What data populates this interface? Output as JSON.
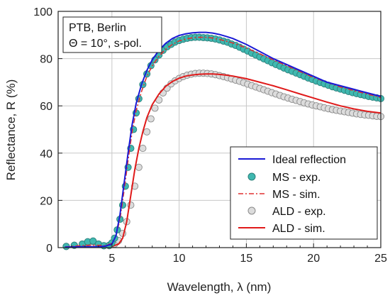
{
  "chart_data": {
    "type": "line",
    "xlabel": "Wavelength, λ (nm)",
    "ylabel": "Reflectance, R (%)",
    "xlim": [
      1,
      25
    ],
    "ylim": [
      0,
      100
    ],
    "xticks": [
      5,
      10,
      15,
      20,
      25
    ],
    "yticks": [
      0,
      20,
      40,
      60,
      80,
      100
    ],
    "grid": true,
    "legend_position": "bottom-right",
    "annotations": [
      "PTB, Berlin",
      "Θ = 10°, s-pol."
    ],
    "colors": {
      "ideal": "#1a1ad6",
      "ms_exp_fill": "#3fb8b0",
      "ms_exp_edge": "#2c7f7a",
      "ms_sim": "#e03030",
      "ald_exp_fill": "#dcdcdc",
      "ald_exp_edge": "#8a8a8a",
      "ald_sim": "#e01a1a",
      "grid": "#c8c8c8"
    },
    "series": [
      {
        "name": "Ideal reflection",
        "style": "line",
        "x": [
          1.5,
          2,
          3,
          4,
          4.5,
          5,
          5.3,
          5.6,
          5.9,
          6.2,
          6.5,
          6.8,
          7.2,
          7.6,
          8,
          8.5,
          9,
          9.5,
          10,
          10.5,
          11,
          11.5,
          12,
          12.5,
          13,
          13.5,
          14,
          15,
          16,
          17,
          18,
          19,
          20,
          21,
          22,
          23,
          24,
          25
        ],
        "y": [
          0.2,
          0.3,
          0.4,
          0.4,
          0.6,
          1.5,
          5,
          14,
          27,
          40,
          52,
          61,
          69,
          75,
          79.5,
          83.5,
          86.5,
          88.5,
          89.8,
          90.5,
          90.9,
          91.1,
          91.1,
          90.8,
          90.2,
          89.4,
          88.5,
          86,
          83,
          80,
          77.5,
          75,
          72.5,
          70,
          68.5,
          67,
          65.5,
          64
        ]
      },
      {
        "name": "MS - exp.",
        "style": "markers",
        "x": [
          1.6,
          2.2,
          2.8,
          3.2,
          3.6,
          4,
          4.4,
          4.8,
          5,
          5.2,
          5.4,
          5.6,
          5.8,
          6,
          6.2,
          6.4,
          6.6,
          6.8,
          7,
          7.3,
          7.6,
          7.9,
          8.2,
          8.5,
          8.8,
          9.1,
          9.4,
          9.7,
          10,
          10.3,
          10.6,
          10.9,
          11.2,
          11.5,
          11.8,
          12.1,
          12.4,
          12.7,
          13,
          13.3,
          13.6,
          13.9,
          14.2,
          14.5,
          14.8,
          15.1,
          15.4,
          15.7,
          16,
          16.3,
          16.6,
          16.9,
          17.2,
          17.5,
          17.8,
          18.1,
          18.4,
          18.7,
          19,
          19.3,
          19.6,
          19.9,
          20.2,
          20.5,
          20.8,
          21.1,
          21.4,
          21.7,
          22,
          22.3,
          22.6,
          22.9,
          23.2,
          23.5,
          23.8,
          24.1,
          24.4,
          24.7,
          25
        ],
        "y": [
          0.5,
          1,
          1.5,
          2.5,
          2.8,
          1.5,
          0.8,
          1,
          2,
          4,
          7.5,
          12,
          18,
          26,
          34,
          42,
          50,
          57,
          63,
          69,
          73.5,
          77,
          79.5,
          81.5,
          83.5,
          85,
          86,
          87,
          87.7,
          88.2,
          88.6,
          88.9,
          89,
          89,
          88.9,
          88.8,
          88.6,
          88.3,
          87.9,
          87.4,
          86.9,
          86.2,
          85.6,
          84.8,
          84,
          83.2,
          82.3,
          81.5,
          80.7,
          79.9,
          79.1,
          78.3,
          77.5,
          76.8,
          76,
          75.3,
          74.6,
          73.9,
          73.2,
          72.5,
          71.8,
          71.2,
          70.5,
          69.9,
          69.3,
          68.7,
          68.1,
          67.6,
          67.1,
          66.6,
          66.1,
          65.6,
          65.2,
          64.8,
          64.4,
          64,
          63.7,
          63.4,
          63.1
        ]
      },
      {
        "name": "MS - sim.",
        "style": "dashdot",
        "x": [
          1.5,
          2,
          3,
          4,
          4.5,
          5,
          5.3,
          5.6,
          5.9,
          6.2,
          6.5,
          6.8,
          7.2,
          7.6,
          8,
          8.5,
          9,
          9.5,
          10,
          10.5,
          11,
          11.5,
          12,
          12.5,
          13,
          13.5,
          14,
          15,
          16,
          17,
          18,
          19,
          20,
          21,
          22,
          23,
          24,
          25
        ],
        "y": [
          0.3,
          0.5,
          1,
          1,
          0.8,
          1.8,
          5,
          12,
          24,
          37,
          49,
          58,
          66,
          72.5,
          77,
          81,
          84,
          86,
          87.5,
          88.3,
          88.8,
          89,
          89,
          88.7,
          88.1,
          87.4,
          86.6,
          84.5,
          82,
          79.5,
          77,
          74.5,
          72,
          70,
          68,
          66.5,
          65,
          63.5
        ]
      },
      {
        "name": "ALD - exp.",
        "style": "markers",
        "x": [
          1.6,
          2.2,
          2.8,
          3.2,
          3.6,
          4,
          4.4,
          4.8,
          5.2,
          5.5,
          5.8,
          6.1,
          6.4,
          6.7,
          7,
          7.3,
          7.6,
          7.9,
          8.2,
          8.5,
          8.8,
          9.1,
          9.4,
          9.7,
          10,
          10.3,
          10.6,
          10.9,
          11.2,
          11.5,
          11.8,
          12.1,
          12.4,
          12.7,
          13,
          13.3,
          13.6,
          13.9,
          14.2,
          14.5,
          14.8,
          15.1,
          15.4,
          15.7,
          16,
          16.3,
          16.6,
          16.9,
          17.2,
          17.5,
          17.8,
          18.1,
          18.4,
          18.7,
          19,
          19.3,
          19.6,
          19.9,
          20.2,
          20.5,
          20.8,
          21.1,
          21.4,
          21.7,
          22,
          22.3,
          22.6,
          22.9,
          23.2,
          23.5,
          23.8,
          24.1,
          24.4,
          24.7,
          25
        ],
        "y": [
          0.5,
          1,
          1.5,
          2,
          2.5,
          1.5,
          0.8,
          0.8,
          1.5,
          3,
          6,
          11,
          18,
          26,
          34,
          42,
          49,
          54.5,
          59,
          62.5,
          65.5,
          67.5,
          69.3,
          70.6,
          71.6,
          72.4,
          73,
          73.4,
          73.7,
          73.8,
          73.8,
          73.7,
          73.5,
          73.2,
          72.8,
          72.4,
          71.9,
          71.4,
          70.9,
          70.4,
          69.8,
          69.2,
          68.6,
          68,
          67.4,
          66.8,
          66.2,
          65.6,
          65,
          64.4,
          63.8,
          63.3,
          62.8,
          62.3,
          61.8,
          61.3,
          60.8,
          60.4,
          60,
          59.6,
          59.2,
          58.8,
          58.4,
          58.1,
          57.8,
          57.5,
          57.2,
          56.9,
          56.6,
          56.4,
          56.2,
          56,
          55.8,
          55.6,
          55.5
        ]
      },
      {
        "name": "ALD - sim.",
        "style": "line",
        "x": [
          1.5,
          2,
          3,
          4,
          5,
          5.5,
          5.8,
          6.1,
          6.4,
          6.7,
          7,
          7.3,
          7.6,
          8,
          8.5,
          9,
          9.5,
          10,
          10.5,
          11,
          11.5,
          12,
          12.5,
          13,
          13.5,
          14,
          15,
          16,
          17,
          18,
          19,
          20,
          21,
          22,
          23,
          24,
          25
        ],
        "y": [
          0.2,
          0.2,
          0.3,
          0.3,
          0.5,
          1.5,
          4,
          11,
          22,
          33,
          42,
          49,
          55,
          60.5,
          65,
          68.3,
          70.3,
          71.7,
          72.6,
          73.1,
          73.4,
          73.5,
          73.5,
          73.3,
          73,
          72.6,
          71.5,
          70,
          68.5,
          66.8,
          65,
          63.3,
          61.6,
          60,
          58.7,
          57.7,
          57
        ]
      }
    ]
  }
}
